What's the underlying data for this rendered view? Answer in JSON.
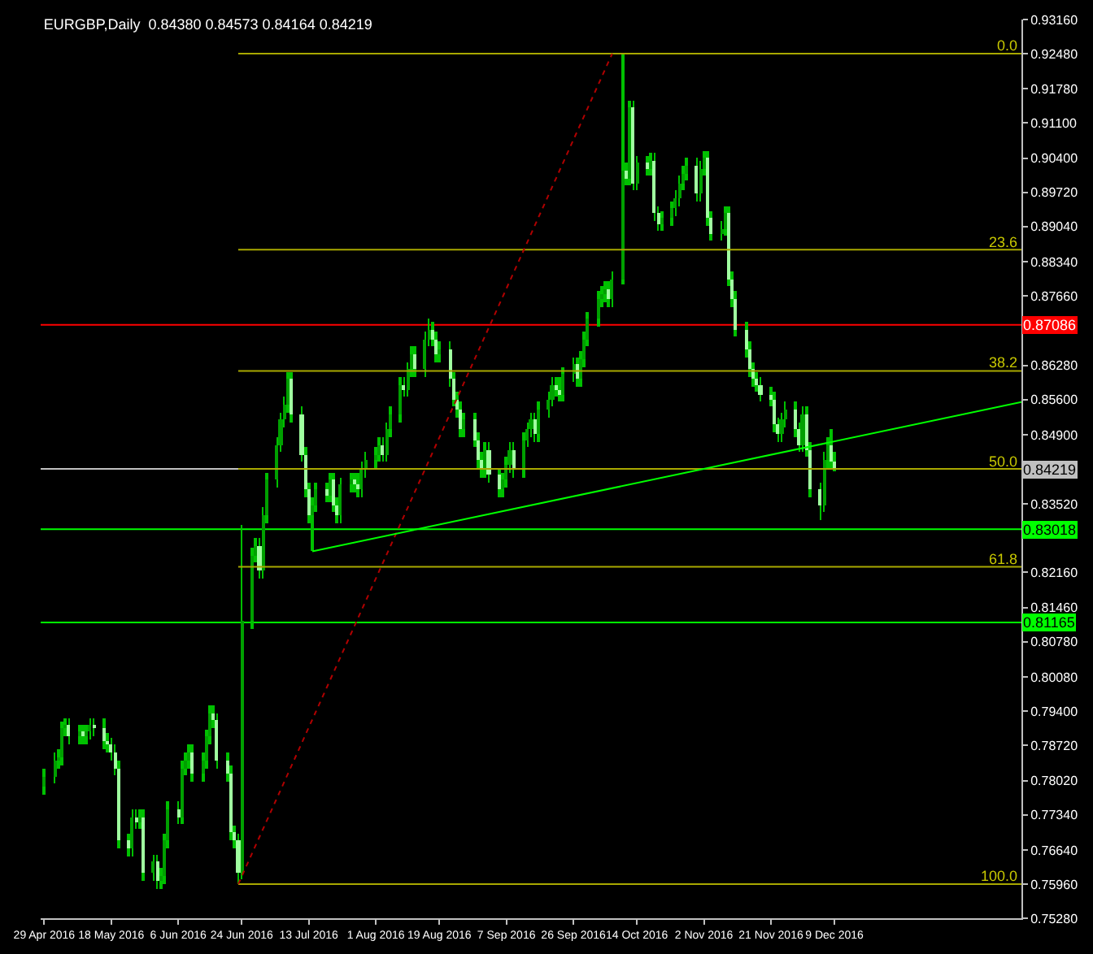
{
  "chart_data": {
    "type": "candlestick",
    "title": "EURGBP,Daily  0.84380 0.84573 0.84164 0.84219",
    "x": [
      "2016-04-29",
      "2016-05-02",
      "2016-05-03",
      "2016-05-04",
      "2016-05-05",
      "2016-05-06",
      "2016-05-09",
      "2016-05-10",
      "2016-05-11",
      "2016-05-12",
      "2016-05-13",
      "2016-05-16",
      "2016-05-17",
      "2016-05-18",
      "2016-05-19",
      "2016-05-20",
      "2016-05-23",
      "2016-05-24",
      "2016-05-25",
      "2016-05-26",
      "2016-05-27",
      "2016-05-30",
      "2016-05-31",
      "2016-06-01",
      "2016-06-02",
      "2016-06-03",
      "2016-06-06",
      "2016-06-07",
      "2016-06-08",
      "2016-06-09",
      "2016-06-10",
      "2016-06-13",
      "2016-06-14",
      "2016-06-15",
      "2016-06-16",
      "2016-06-17",
      "2016-06-20",
      "2016-06-21",
      "2016-06-22",
      "2016-06-23",
      "2016-06-24",
      "2016-06-27",
      "2016-06-28",
      "2016-06-29",
      "2016-06-30",
      "2016-07-01",
      "2016-07-04",
      "2016-07-05",
      "2016-07-06",
      "2016-07-07",
      "2016-07-08",
      "2016-07-11",
      "2016-07-12",
      "2016-07-13",
      "2016-07-14",
      "2016-07-15",
      "2016-07-18",
      "2016-07-19",
      "2016-07-20",
      "2016-07-21",
      "2016-07-22",
      "2016-07-25",
      "2016-07-26",
      "2016-07-27",
      "2016-07-28",
      "2016-07-29",
      "2016-08-01",
      "2016-08-02",
      "2016-08-03",
      "2016-08-04",
      "2016-08-05",
      "2016-08-08",
      "2016-08-09",
      "2016-08-10",
      "2016-08-11",
      "2016-08-12",
      "2016-08-15",
      "2016-08-16",
      "2016-08-17",
      "2016-08-18",
      "2016-08-19",
      "2016-08-22",
      "2016-08-23",
      "2016-08-24",
      "2016-08-25",
      "2016-08-26",
      "2016-08-29",
      "2016-08-30",
      "2016-08-31",
      "2016-09-01",
      "2016-09-02",
      "2016-09-05",
      "2016-09-06",
      "2016-09-07",
      "2016-09-08",
      "2016-09-09",
      "2016-09-12",
      "2016-09-13",
      "2016-09-14",
      "2016-09-15",
      "2016-09-16",
      "2016-09-19",
      "2016-09-20",
      "2016-09-21",
      "2016-09-22",
      "2016-09-23",
      "2016-09-26",
      "2016-09-27",
      "2016-09-28",
      "2016-09-29",
      "2016-09-30",
      "2016-10-03",
      "2016-10-04",
      "2016-10-05",
      "2016-10-06",
      "2016-10-07",
      "2016-10-10",
      "2016-10-11",
      "2016-10-12",
      "2016-10-13",
      "2016-10-14",
      "2016-10-17",
      "2016-10-18",
      "2016-10-19",
      "2016-10-20",
      "2016-10-21",
      "2016-10-24",
      "2016-10-25",
      "2016-10-26",
      "2016-10-27",
      "2016-10-28",
      "2016-10-31",
      "2016-11-01",
      "2016-11-02",
      "2016-11-03",
      "2016-11-04",
      "2016-11-07",
      "2016-11-08",
      "2016-11-09",
      "2016-11-10",
      "2016-11-11",
      "2016-11-14",
      "2016-11-15",
      "2016-11-16",
      "2016-11-17",
      "2016-11-18",
      "2016-11-21",
      "2016-11-22",
      "2016-11-23",
      "2016-11-24",
      "2016-11-25",
      "2016-11-28",
      "2016-11-29",
      "2016-11-30",
      "2016-12-01",
      "2016-12-02",
      "2016-12-05",
      "2016-12-06",
      "2016-12-07",
      "2016-12-08",
      "2016-12-09"
    ],
    "ohlc": [
      [
        0.779,
        0.7825,
        0.7775,
        0.781
      ],
      [
        0.781,
        0.7857,
        0.7795,
        0.7842
      ],
      [
        0.7842,
        0.7863,
        0.7827,
        0.7848
      ],
      [
        0.7848,
        0.792,
        0.7833,
        0.7905
      ],
      [
        0.7905,
        0.7927,
        0.789,
        0.7912
      ],
      [
        0.7912,
        0.7927,
        0.7874,
        0.7889
      ],
      [
        0.7889,
        0.7914,
        0.7874,
        0.7899
      ],
      [
        0.7899,
        0.7914,
        0.7874,
        0.7889
      ],
      [
        0.7889,
        0.7914,
        0.7874,
        0.7899
      ],
      [
        0.7899,
        0.7927,
        0.7884,
        0.7912
      ],
      [
        0.7912,
        0.7927,
        0.789,
        0.7905
      ],
      [
        0.7905,
        0.7927,
        0.7865,
        0.788
      ],
      [
        0.788,
        0.7895,
        0.7858,
        0.7873
      ],
      [
        0.7873,
        0.7888,
        0.7843,
        0.7858
      ],
      [
        0.7858,
        0.7873,
        0.7811,
        0.7826
      ],
      [
        0.7826,
        0.7841,
        0.7667,
        0.7682
      ],
      [
        0.7682,
        0.7697,
        0.7651,
        0.7666
      ],
      [
        0.7666,
        0.7745,
        0.7651,
        0.773
      ],
      [
        0.773,
        0.7745,
        0.7705,
        0.772
      ],
      [
        0.772,
        0.7745,
        0.7705,
        0.773
      ],
      [
        0.773,
        0.7745,
        0.7603,
        0.7618
      ],
      [
        0.7618,
        0.7655,
        0.7603,
        0.764
      ],
      [
        0.764,
        0.7655,
        0.7587,
        0.7602
      ],
      [
        0.7602,
        0.7627,
        0.7587,
        0.7612
      ],
      [
        0.7612,
        0.7697,
        0.7597,
        0.7682
      ],
      [
        0.7682,
        0.7761,
        0.7667,
        0.7746
      ],
      [
        0.7746,
        0.7761,
        0.7715,
        0.773
      ],
      [
        0.773,
        0.7841,
        0.7715,
        0.7826
      ],
      [
        0.7826,
        0.7857,
        0.7811,
        0.7842
      ],
      [
        0.7842,
        0.7873,
        0.7827,
        0.7858
      ],
      [
        0.7858,
        0.7873,
        0.7801,
        0.7816
      ],
      [
        0.7816,
        0.7857,
        0.7801,
        0.7842
      ],
      [
        0.7842,
        0.7904,
        0.7827,
        0.7889
      ],
      [
        0.7889,
        0.7952,
        0.7874,
        0.7937
      ],
      [
        0.7937,
        0.7952,
        0.7906,
        0.7921
      ],
      [
        0.7921,
        0.7936,
        0.7827,
        0.7842
      ],
      [
        0.7842,
        0.7857,
        0.7801,
        0.7816
      ],
      [
        0.7816,
        0.7831,
        0.7683,
        0.7698
      ],
      [
        0.7698,
        0.7713,
        0.7667,
        0.7682
      ],
      [
        0.7682,
        0.7697,
        0.7596,
        0.762
      ],
      [
        0.762,
        0.831,
        0.7605,
        0.812
      ],
      [
        0.812,
        0.8265,
        0.8105,
        0.825
      ],
      [
        0.825,
        0.8285,
        0.8235,
        0.827
      ],
      [
        0.827,
        0.8285,
        0.8205,
        0.822
      ],
      [
        0.822,
        0.8345,
        0.8205,
        0.833
      ],
      [
        0.833,
        0.8415,
        0.8315,
        0.84
      ],
      [
        0.84,
        0.8485,
        0.8385,
        0.847
      ],
      [
        0.847,
        0.8535,
        0.8455,
        0.852
      ],
      [
        0.852,
        0.8565,
        0.8505,
        0.855
      ],
      [
        0.855,
        0.8615,
        0.8535,
        0.86
      ],
      [
        0.86,
        0.8615,
        0.8515,
        0.853
      ],
      [
        0.853,
        0.8545,
        0.8435,
        0.845
      ],
      [
        0.845,
        0.8465,
        0.8365,
        0.838
      ],
      [
        0.838,
        0.8395,
        0.8315,
        0.833
      ],
      [
        0.833,
        0.8365,
        0.8258,
        0.835
      ],
      [
        0.835,
        0.8395,
        0.8335,
        0.838
      ],
      [
        0.838,
        0.8395,
        0.8355,
        0.837
      ],
      [
        0.837,
        0.8415,
        0.8355,
        0.84
      ],
      [
        0.84,
        0.8415,
        0.8335,
        0.835
      ],
      [
        0.835,
        0.8365,
        0.8315,
        0.833
      ],
      [
        0.833,
        0.8405,
        0.8315,
        0.839
      ],
      [
        0.839,
        0.8415,
        0.8375,
        0.84
      ],
      [
        0.84,
        0.8415,
        0.8375,
        0.839
      ],
      [
        0.839,
        0.8415,
        0.8365,
        0.838
      ],
      [
        0.838,
        0.8435,
        0.8365,
        0.842
      ],
      [
        0.842,
        0.8455,
        0.8405,
        0.844
      ],
      [
        0.844,
        0.8465,
        0.8425,
        0.845
      ],
      [
        0.845,
        0.8485,
        0.8435,
        0.847
      ],
      [
        0.847,
        0.8485,
        0.8435,
        0.845
      ],
      [
        0.845,
        0.8515,
        0.8435,
        0.85
      ],
      [
        0.85,
        0.8545,
        0.8485,
        0.853
      ],
      [
        0.853,
        0.8605,
        0.8515,
        0.859
      ],
      [
        0.859,
        0.8605,
        0.8565,
        0.858
      ],
      [
        0.858,
        0.8635,
        0.8565,
        0.862
      ],
      [
        0.862,
        0.8665,
        0.8605,
        0.865
      ],
      [
        0.865,
        0.8665,
        0.8605,
        0.862
      ],
      [
        0.862,
        0.8695,
        0.8605,
        0.868
      ],
      [
        0.868,
        0.872,
        0.8665,
        0.87
      ],
      [
        0.87,
        0.8715,
        0.8665,
        0.868
      ],
      [
        0.868,
        0.8695,
        0.8635,
        0.865
      ],
      [
        0.865,
        0.8675,
        0.8635,
        0.866
      ],
      [
        0.866,
        0.8675,
        0.8585,
        0.86
      ],
      [
        0.86,
        0.8615,
        0.8545,
        0.856
      ],
      [
        0.856,
        0.8575,
        0.8525,
        0.854
      ],
      [
        0.854,
        0.8555,
        0.8485,
        0.85
      ],
      [
        0.85,
        0.8535,
        0.8485,
        0.852
      ],
      [
        0.852,
        0.8535,
        0.8465,
        0.848
      ],
      [
        0.848,
        0.8495,
        0.8425,
        0.844
      ],
      [
        0.844,
        0.8455,
        0.8405,
        0.842
      ],
      [
        0.842,
        0.8475,
        0.8405,
        0.846
      ],
      [
        0.846,
        0.8475,
        0.8395,
        0.841
      ],
      [
        0.841,
        0.8425,
        0.8365,
        0.838
      ],
      [
        0.838,
        0.8415,
        0.8365,
        0.84
      ],
      [
        0.84,
        0.8445,
        0.8385,
        0.843
      ],
      [
        0.843,
        0.8475,
        0.8415,
        0.846
      ],
      [
        0.846,
        0.8475,
        0.8405,
        0.842
      ],
      [
        0.842,
        0.8495,
        0.8405,
        0.848
      ],
      [
        0.848,
        0.8515,
        0.8465,
        0.85
      ],
      [
        0.85,
        0.8535,
        0.8485,
        0.852
      ],
      [
        0.852,
        0.8535,
        0.8475,
        0.849
      ],
      [
        0.849,
        0.8555,
        0.8475,
        0.854
      ],
      [
        0.854,
        0.8575,
        0.8525,
        0.856
      ],
      [
        0.856,
        0.8605,
        0.8545,
        0.859
      ],
      [
        0.859,
        0.8605,
        0.8565,
        0.858
      ],
      [
        0.858,
        0.8605,
        0.8555,
        0.857
      ],
      [
        0.857,
        0.8625,
        0.8555,
        0.861
      ],
      [
        0.861,
        0.8645,
        0.8595,
        0.863
      ],
      [
        0.863,
        0.8645,
        0.8585,
        0.86
      ],
      [
        0.86,
        0.8655,
        0.8585,
        0.864
      ],
      [
        0.864,
        0.8695,
        0.8625,
        0.868
      ],
      [
        0.868,
        0.8735,
        0.8665,
        0.872
      ],
      [
        0.872,
        0.8775,
        0.8705,
        0.876
      ],
      [
        0.876,
        0.8785,
        0.8745,
        0.877
      ],
      [
        0.877,
        0.8795,
        0.8755,
        0.878
      ],
      [
        0.878,
        0.8795,
        0.8745,
        0.876
      ],
      [
        0.876,
        0.8815,
        0.8745,
        0.88
      ],
      [
        0.88,
        0.9248,
        0.879,
        0.9015
      ],
      [
        0.9015,
        0.903,
        0.8985,
        0.9
      ],
      [
        0.9,
        0.9155,
        0.8985,
        0.914
      ],
      [
        0.914,
        0.9155,
        0.8975,
        0.899
      ],
      [
        0.899,
        0.9045,
        0.8975,
        0.903
      ],
      [
        0.903,
        0.9045,
        0.9005,
        0.902
      ],
      [
        0.902,
        0.905,
        0.9005,
        0.9035
      ],
      [
        0.9035,
        0.905,
        0.8915,
        0.893
      ],
      [
        0.893,
        0.8945,
        0.8895,
        0.891
      ],
      [
        0.891,
        0.8935,
        0.8895,
        0.892
      ],
      [
        0.892,
        0.8955,
        0.8905,
        0.894
      ],
      [
        0.894,
        0.8975,
        0.8925,
        0.896
      ],
      [
        0.896,
        0.9005,
        0.8945,
        0.899
      ],
      [
        0.899,
        0.9025,
        0.8975,
        0.901
      ],
      [
        0.901,
        0.904,
        0.8995,
        0.9025
      ],
      [
        0.9025,
        0.904,
        0.8955,
        0.897
      ],
      [
        0.897,
        0.9035,
        0.8955,
        0.902
      ],
      [
        0.902,
        0.9055,
        0.9005,
        0.904
      ],
      [
        0.904,
        0.9055,
        0.8905,
        0.892
      ],
      [
        0.892,
        0.8935,
        0.8875,
        0.889
      ],
      [
        0.889,
        0.8915,
        0.8875,
        0.89
      ],
      [
        0.89,
        0.8945,
        0.8885,
        0.893
      ],
      [
        0.893,
        0.8945,
        0.8785,
        0.88
      ],
      [
        0.88,
        0.8815,
        0.8745,
        0.876
      ],
      [
        0.876,
        0.8775,
        0.8685,
        0.87
      ],
      [
        0.87,
        0.8715,
        0.8645,
        0.866
      ],
      [
        0.866,
        0.8675,
        0.8605,
        0.862
      ],
      [
        0.862,
        0.8635,
        0.8585,
        0.86
      ],
      [
        0.86,
        0.8615,
        0.8575,
        0.859
      ],
      [
        0.859,
        0.8605,
        0.8555,
        0.857
      ],
      [
        0.857,
        0.8585,
        0.8545,
        0.856
      ],
      [
        0.856,
        0.8575,
        0.8495,
        0.851
      ],
      [
        0.851,
        0.8525,
        0.8475,
        0.849
      ],
      [
        0.849,
        0.8535,
        0.8475,
        0.852
      ],
      [
        0.852,
        0.8555,
        0.8505,
        0.854
      ],
      [
        0.854,
        0.8555,
        0.8485,
        0.85
      ],
      [
        0.85,
        0.8515,
        0.8455,
        0.847
      ],
      [
        0.847,
        0.8545,
        0.8455,
        0.853
      ],
      [
        0.853,
        0.8545,
        0.8445,
        0.846
      ],
      [
        0.846,
        0.8475,
        0.8365,
        0.838
      ],
      [
        0.838,
        0.8395,
        0.832,
        0.835
      ],
      [
        0.835,
        0.8455,
        0.8335,
        0.844
      ],
      [
        0.844,
        0.8485,
        0.8425,
        0.847
      ],
      [
        0.847,
        0.85,
        0.8423,
        0.8438
      ],
      [
        0.8438,
        0.84573,
        0.84164,
        0.84219
      ]
    ],
    "xlim": [
      "2016-04-28",
      "2017-01-31"
    ],
    "xticks": [
      {
        "value": "2016-04-29",
        "label": "29 Apr 2016"
      },
      {
        "value": "2016-05-18",
        "label": "18 May 2016"
      },
      {
        "value": "2016-06-06",
        "label": "6 Jun 2016"
      },
      {
        "value": "2016-06-24",
        "label": "24 Jun 2016"
      },
      {
        "value": "2016-07-13",
        "label": "13 Jul 2016"
      },
      {
        "value": "2016-08-01",
        "label": "1 Aug 2016"
      },
      {
        "value": "2016-08-19",
        "label": "19 Aug 2016"
      },
      {
        "value": "2016-09-07",
        "label": "7 Sep 2016"
      },
      {
        "value": "2016-09-26",
        "label": "26 Sep 2016"
      },
      {
        "value": "2016-10-14",
        "label": "14 Oct 2016"
      },
      {
        "value": "2016-11-02",
        "label": "2 Nov 2016"
      },
      {
        "value": "2016-11-21",
        "label": "21 Nov 2016"
      },
      {
        "value": "2016-12-09",
        "label": "9 Dec 2016"
      }
    ],
    "ylim": [
      0.7528,
      0.9316
    ],
    "yticks": [
      {
        "value": 0.9316,
        "label": "0.93160"
      },
      {
        "value": 0.9248,
        "label": "0.92480"
      },
      {
        "value": 0.9178,
        "label": "0.91780"
      },
      {
        "value": 0.911,
        "label": "0.91100"
      },
      {
        "value": 0.904,
        "label": "0.90400"
      },
      {
        "value": 0.8972,
        "label": "0.89720"
      },
      {
        "value": 0.8904,
        "label": "0.89040"
      },
      {
        "value": 0.8834,
        "label": "0.88340"
      },
      {
        "value": 0.8766,
        "label": "0.87660"
      },
      {
        "value": 0.8696,
        "label": null
      },
      {
        "value": 0.8628,
        "label": "0.86280"
      },
      {
        "value": 0.856,
        "label": "0.85600"
      },
      {
        "value": 0.849,
        "label": "0.84900"
      },
      {
        "value": 0.8352,
        "label": "0.83520"
      },
      {
        "value": 0.8284,
        "label": null
      },
      {
        "value": 0.8216,
        "label": "0.82160"
      },
      {
        "value": 0.8146,
        "label": "0.81460"
      },
      {
        "value": 0.8078,
        "label": "0.80780"
      },
      {
        "value": 0.8008,
        "label": "0.80080"
      },
      {
        "value": 0.794,
        "label": "0.79400"
      },
      {
        "value": 0.7872,
        "label": "0.78720"
      },
      {
        "value": 0.7802,
        "label": "0.78020"
      },
      {
        "value": 0.7734,
        "label": "0.77340"
      },
      {
        "value": 0.7664,
        "label": "0.76640"
      },
      {
        "value": 0.7596,
        "label": "0.75960"
      },
      {
        "value": 0.7528,
        "label": "0.75280"
      }
    ],
    "series": [
      {
        "type": "line",
        "x": [
          "2016-06-23",
          "2017-01-31"
        ],
        "values": [
          0.9248,
          0.9248
        ],
        "color": "#a8a800"
      },
      {
        "type": "line",
        "x": [
          "2016-06-23",
          "2017-01-31"
        ],
        "values": [
          0.8858,
          0.8858
        ],
        "color": "#a8a800"
      },
      {
        "type": "line",
        "x": [
          "2016-06-23",
          "2017-01-31"
        ],
        "values": [
          0.8617,
          0.8617
        ],
        "color": "#a8a800"
      },
      {
        "type": "line",
        "x": [
          "2016-06-23",
          "2017-01-31"
        ],
        "values": [
          0.8422,
          0.8422
        ],
        "color": "#a8a800"
      },
      {
        "type": "line",
        "x": [
          "2016-06-23",
          "2017-01-31"
        ],
        "values": [
          0.8227,
          0.8227
        ],
        "color": "#a8a800"
      },
      {
        "type": "line",
        "x": [
          "2016-06-23",
          "2017-01-31"
        ],
        "values": [
          0.7596,
          0.7596
        ],
        "color": "#a8a800"
      },
      {
        "type": "line",
        "x": [
          "2016-06-23",
          "2016-10-07"
        ],
        "values": [
          0.7596,
          0.9248
        ],
        "color": "#b00000",
        "line_style": "dotted"
      },
      {
        "type": "line",
        "x": [
          "2016-07-14",
          "2017-01-31"
        ],
        "values": [
          0.8258,
          0.8555
        ],
        "color": "#00ff00"
      }
    ],
    "ref_lines": [
      {
        "axis": "y",
        "value": 0.87086,
        "label": "0.87086",
        "color": "#ff0000"
      },
      {
        "axis": "y",
        "value": 0.84219,
        "label": "0.84219",
        "color": "#c0c0c0"
      },
      {
        "axis": "y",
        "value": 0.83018,
        "label": "0.83018",
        "color": "#00ff00"
      },
      {
        "axis": "y",
        "value": 0.81165,
        "label": "0.81165",
        "color": "#00ff00"
      }
    ],
    "annotations": [
      {
        "text": "0.0",
        "x": "2017-01-31",
        "y": 0.9248
      },
      {
        "text": "23.6",
        "x": "2017-01-31",
        "y": 0.8858
      },
      {
        "text": "38.2",
        "x": "2017-01-31",
        "y": 0.8617
      },
      {
        "text": "50.0",
        "x": "2017-01-31",
        "y": 0.8422
      },
      {
        "text": "61.8",
        "x": "2017-01-31",
        "y": 0.8227
      },
      {
        "text": "100.0",
        "x": "2017-01-31",
        "y": 0.7596
      }
    ],
    "grid": false
  }
}
